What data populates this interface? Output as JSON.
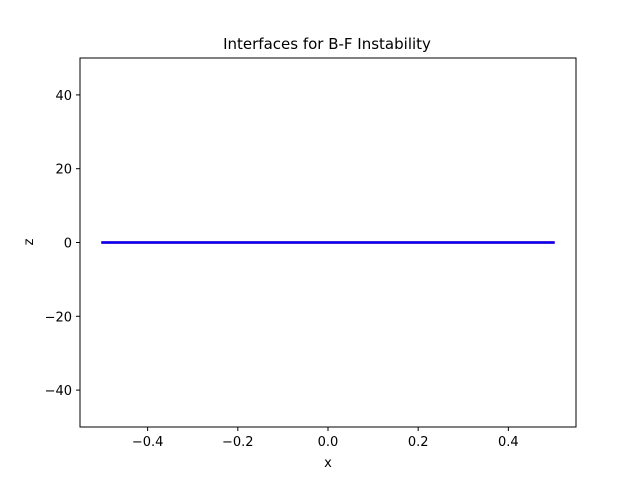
{
  "chart_data": {
    "type": "line",
    "title": "Interfaces for B-F Instability",
    "xlabel": "x",
    "ylabel": "z",
    "xlim": [
      -0.55,
      0.55
    ],
    "ylim": [
      -50,
      50
    ],
    "xticks": [
      -0.4,
      -0.2,
      0.0,
      0.2,
      0.4
    ],
    "xtick_labels": [
      "−0.4",
      "−0.2",
      "0.0",
      "0.2",
      "0.4"
    ],
    "yticks": [
      -40,
      -20,
      0,
      20,
      40
    ],
    "ytick_labels": [
      "−40",
      "−20",
      "0",
      "20",
      "40"
    ],
    "grid": false,
    "legend": "none",
    "series": [
      {
        "color": "#0000ff",
        "x": [
          -0.5,
          0.5
        ],
        "y": [
          0,
          0
        ]
      },
      {
        "color": "#ff0000",
        "x": [
          -0.5,
          0.5
        ],
        "y": [
          0,
          0
        ]
      }
    ]
  }
}
